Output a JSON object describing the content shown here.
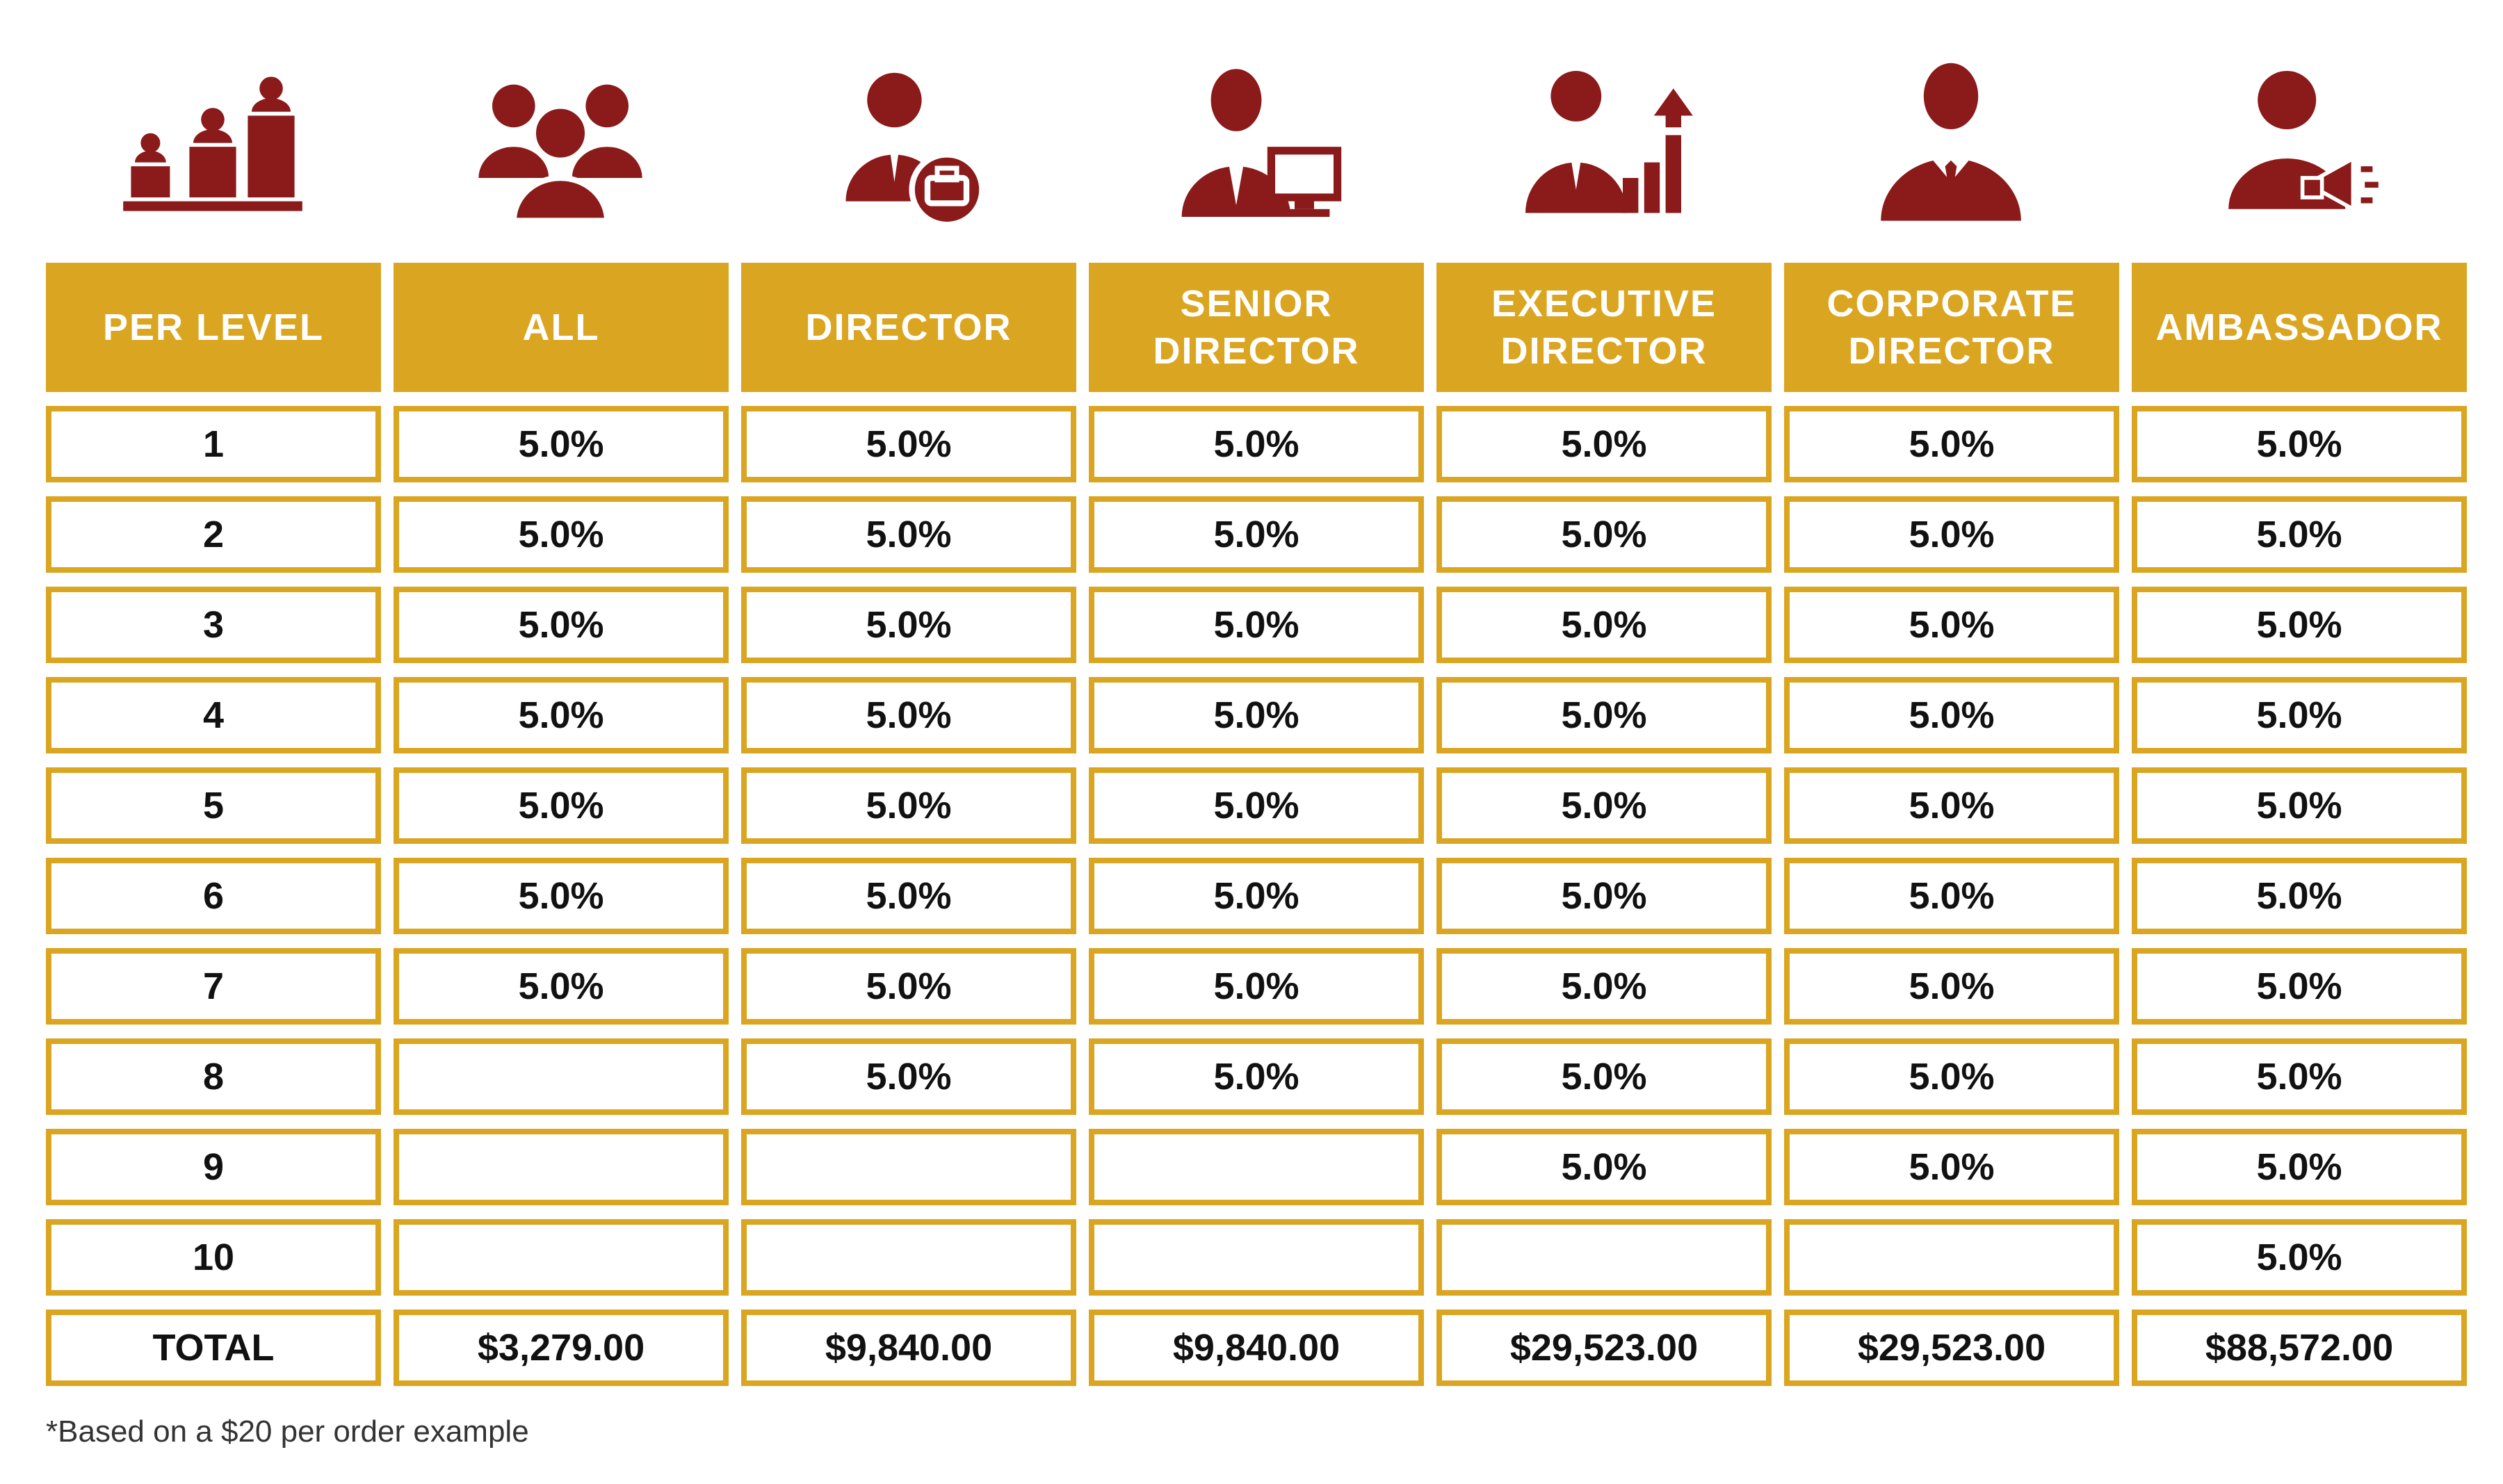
{
  "colors": {
    "accent": "#DAA520",
    "icon": "#8B1A1A",
    "header_text": "#FFFFFF",
    "body_text": "#111111"
  },
  "icons": [
    "podium-people-icon",
    "group-icon",
    "briefcase-person-icon",
    "person-computer-icon",
    "person-growth-chart-icon",
    "businessman-icon",
    "person-megaphone-icon"
  ],
  "table": {
    "headers": [
      "PER LEVEL",
      "ALL",
      "DIRECTOR",
      "SENIOR DIRECTOR",
      "EXECUTIVE DIRECTOR",
      "CORPORATE DIRECTOR",
      "AMBASSADOR"
    ],
    "rows": [
      [
        "1",
        "5.0%",
        "5.0%",
        "5.0%",
        "5.0%",
        "5.0%",
        "5.0%"
      ],
      [
        "2",
        "5.0%",
        "5.0%",
        "5.0%",
        "5.0%",
        "5.0%",
        "5.0%"
      ],
      [
        "3",
        "5.0%",
        "5.0%",
        "5.0%",
        "5.0%",
        "5.0%",
        "5.0%"
      ],
      [
        "4",
        "5.0%",
        "5.0%",
        "5.0%",
        "5.0%",
        "5.0%",
        "5.0%"
      ],
      [
        "5",
        "5.0%",
        "5.0%",
        "5.0%",
        "5.0%",
        "5.0%",
        "5.0%"
      ],
      [
        "6",
        "5.0%",
        "5.0%",
        "5.0%",
        "5.0%",
        "5.0%",
        "5.0%"
      ],
      [
        "7",
        "5.0%",
        "5.0%",
        "5.0%",
        "5.0%",
        "5.0%",
        "5.0%"
      ],
      [
        "8",
        "",
        "5.0%",
        "5.0%",
        "5.0%",
        "5.0%",
        "5.0%"
      ],
      [
        "9",
        "",
        "",
        "",
        "5.0%",
        "5.0%",
        "5.0%"
      ],
      [
        "10",
        "",
        "",
        "",
        "",
        "",
        "5.0%"
      ]
    ],
    "total_row": [
      "TOTAL",
      "$3,279.00",
      "$9,840.00",
      "$9,840.00",
      "$29,523.00",
      "$29,523.00",
      "$88,572.00"
    ]
  },
  "footnote": "*Based on a $20 per order example"
}
